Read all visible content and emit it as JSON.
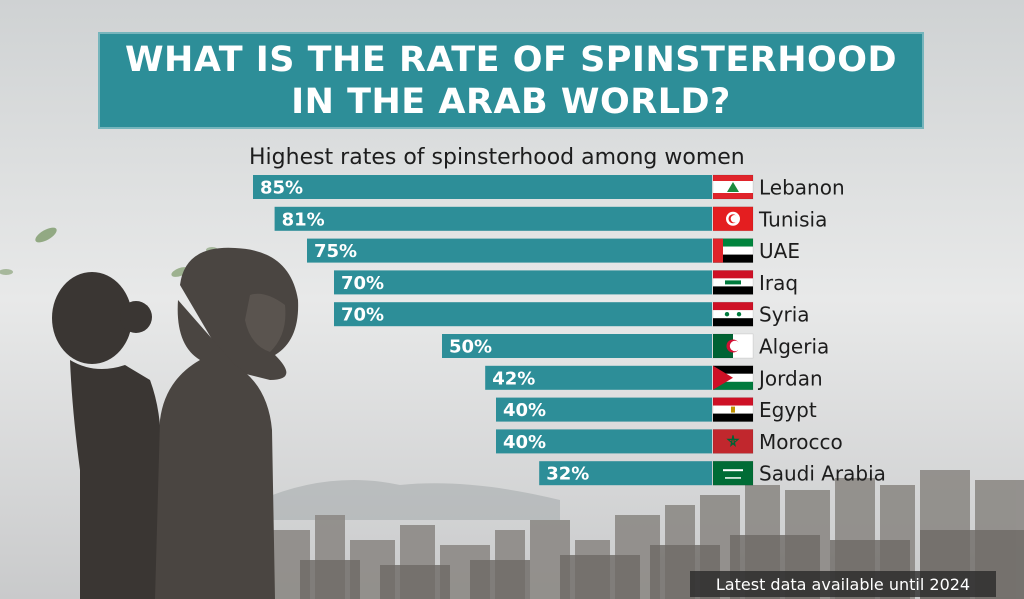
{
  "title_lines": [
    "WHAT IS THE RATE OF SPINSTERHOOD",
    "IN THE ARAB WORLD?"
  ],
  "subtitle": "Highest rates of spinsterhood among women",
  "footnote": "Latest data available until 2024",
  "colors": {
    "bar": "#2d8e98",
    "title_bg": "#2d8e98"
  },
  "chart_data": {
    "type": "bar",
    "orientation": "horizontal",
    "title": "WHAT IS THE RATE OF SPINSTERHOOD IN THE ARAB WORLD?",
    "subtitle": "Highest rates of spinsterhood among women",
    "categories": [
      "Lebanon",
      "Tunisia",
      "UAE",
      "Iraq",
      "Syria",
      "Algeria",
      "Jordan",
      "Egypt",
      "Morocco",
      "Saudi Arabia"
    ],
    "values": [
      85,
      81,
      75,
      70,
      70,
      50,
      42,
      40,
      40,
      32
    ],
    "value_labels": [
      "85%",
      "81%",
      "75%",
      "70%",
      "70%",
      "50%",
      "42%",
      "40%",
      "40%",
      "32%"
    ],
    "flag_icons": [
      "lebanon-flag-icon",
      "tunisia-flag-icon",
      "uae-flag-icon",
      "iraq-flag-icon",
      "syria-flag-icon",
      "algeria-flag-icon",
      "jordan-flag-icon",
      "egypt-flag-icon",
      "morocco-flag-icon",
      "saudi-arabia-flag-icon"
    ],
    "unit": "%",
    "xlim": [
      0,
      100
    ]
  }
}
